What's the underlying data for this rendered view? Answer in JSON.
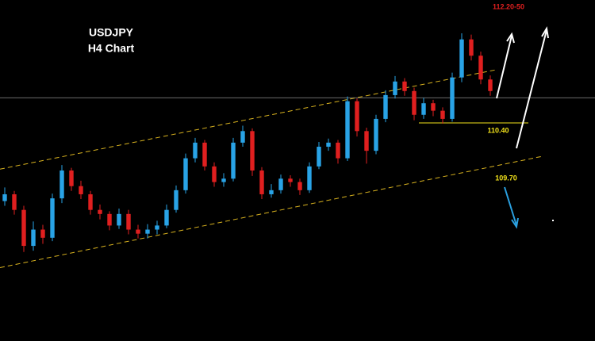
{
  "chart_data": {
    "type": "candlestick",
    "title": "USDJPY",
    "subtitle": "H4 Chart",
    "xlim": [
      -0.5,
      62
    ],
    "ylim": [
      107.19,
      112.21
    ],
    "up_color": "#29a3e6",
    "down_color": "#e01f1f",
    "open": [
      109.25,
      109.35,
      109.12,
      108.59,
      108.83,
      108.71,
      109.29,
      109.7,
      109.47,
      109.35,
      109.12,
      109.06,
      108.89,
      109.06,
      108.83,
      108.77,
      108.83,
      108.89,
      109.12,
      109.41,
      109.88,
      110.11,
      109.76,
      109.53,
      109.58,
      110.11,
      110.28,
      109.7,
      109.35,
      109.41,
      109.58,
      109.53,
      109.41,
      109.76,
      110.05,
      110.11,
      109.88,
      110.72,
      110.28,
      109.99,
      110.46,
      110.81,
      111.01,
      110.87,
      110.52,
      110.69,
      110.58,
      110.46,
      111.07,
      111.63,
      111.39,
      111.04
    ],
    "high": [
      109.45,
      109.4,
      109.18,
      108.95,
      108.9,
      109.36,
      109.78,
      109.74,
      109.55,
      109.4,
      109.2,
      109.1,
      109.14,
      109.12,
      108.9,
      108.91,
      108.96,
      109.2,
      109.48,
      109.95,
      110.18,
      110.15,
      109.82,
      109.66,
      110.18,
      110.36,
      110.32,
      109.75,
      109.5,
      109.64,
      109.63,
      109.58,
      109.82,
      110.12,
      110.17,
      110.15,
      110.79,
      110.76,
      110.33,
      110.52,
      110.88,
      111.09,
      111.06,
      110.92,
      110.77,
      110.74,
      110.63,
      111.14,
      111.72,
      111.7,
      111.45,
      111.1
    ],
    "low": [
      109.18,
      109.05,
      108.5,
      108.52,
      108.62,
      108.66,
      109.22,
      109.4,
      109.28,
      109.05,
      108.98,
      108.82,
      108.84,
      108.76,
      108.7,
      108.7,
      108.76,
      108.85,
      109.08,
      109.36,
      109.82,
      109.7,
      109.46,
      109.46,
      109.54,
      110.05,
      109.62,
      109.28,
      109.3,
      109.36,
      109.46,
      109.34,
      109.37,
      109.72,
      109.99,
      109.8,
      109.84,
      110.2,
      109.8,
      109.94,
      110.41,
      110.76,
      110.8,
      110.44,
      110.46,
      110.5,
      110.39,
      110.42,
      111.0,
      111.32,
      110.97,
      110.8
    ],
    "close": [
      109.35,
      109.12,
      108.59,
      108.83,
      108.71,
      109.29,
      109.7,
      109.47,
      109.35,
      109.12,
      109.06,
      108.89,
      109.06,
      108.83,
      108.77,
      108.83,
      108.89,
      109.12,
      109.41,
      109.88,
      110.11,
      109.76,
      109.53,
      109.58,
      110.11,
      110.28,
      109.7,
      109.35,
      109.41,
      109.58,
      109.53,
      109.41,
      109.76,
      110.05,
      110.11,
      109.88,
      110.72,
      110.28,
      109.99,
      110.46,
      110.81,
      111.01,
      110.87,
      110.52,
      110.69,
      110.58,
      110.46,
      111.07,
      111.63,
      111.39,
      111.04,
      110.87
    ],
    "price_line": 110.77,
    "price_line_color": "#6b6b6b",
    "trendline_color": "#d8b21f",
    "trendlines": [
      {
        "points": [
          [
            -0.5,
            109.72
          ],
          [
            51.5,
            111.18
          ]
        ]
      },
      {
        "points": [
          [
            -0.5,
            108.27
          ],
          [
            56.5,
            109.91
          ]
        ]
      }
    ],
    "annotations": [
      {
        "value": 110.4,
        "label": "110.40"
      },
      {
        "value": 109.7,
        "label": "109.70"
      }
    ],
    "annotation_color": "#f2e21a",
    "support_x": [
      43.5,
      55
    ],
    "target": "112.20-50",
    "target_color": "#e01f1f"
  }
}
